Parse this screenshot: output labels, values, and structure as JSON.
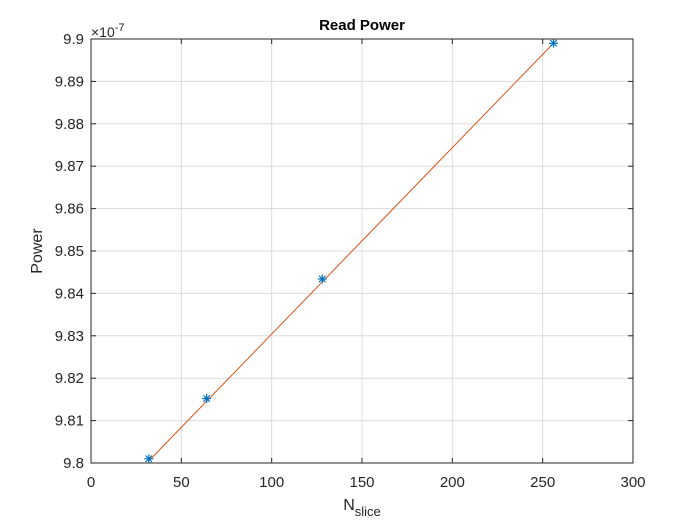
{
  "chart_data": {
    "type": "line",
    "title": "Read Power",
    "xlabel": {
      "base": "N",
      "subscript": "slice"
    },
    "ylabel": "Power",
    "y_exponent_label": {
      "prefix": "×10",
      "power": "-7"
    },
    "xlim": [
      0,
      300
    ],
    "ylim": [
      9.8,
      9.9
    ],
    "xticks": [
      0,
      50,
      100,
      150,
      200,
      250,
      300
    ],
    "xtick_labels": [
      "0",
      "50",
      "100",
      "150",
      "200",
      "250",
      "300"
    ],
    "yticks": [
      9.8,
      9.81,
      9.82,
      9.83,
      9.84,
      9.85,
      9.86,
      9.87,
      9.88,
      9.89,
      9.9
    ],
    "ytick_labels": [
      "9.8",
      "9.81",
      "9.82",
      "9.83",
      "9.84",
      "9.85",
      "9.86",
      "9.87",
      "9.88",
      "9.89",
      "9.9"
    ],
    "grid": true,
    "series": [
      {
        "style": "markers",
        "marker": "asterisk",
        "color": "#0072BD",
        "x": [
          32,
          64,
          128,
          256
        ],
        "y": [
          9.801,
          9.8152,
          9.8434,
          9.899
        ]
      },
      {
        "style": "line",
        "color": "#D95319",
        "x": [
          32,
          256
        ],
        "y": [
          9.8005,
          9.899
        ]
      }
    ]
  }
}
